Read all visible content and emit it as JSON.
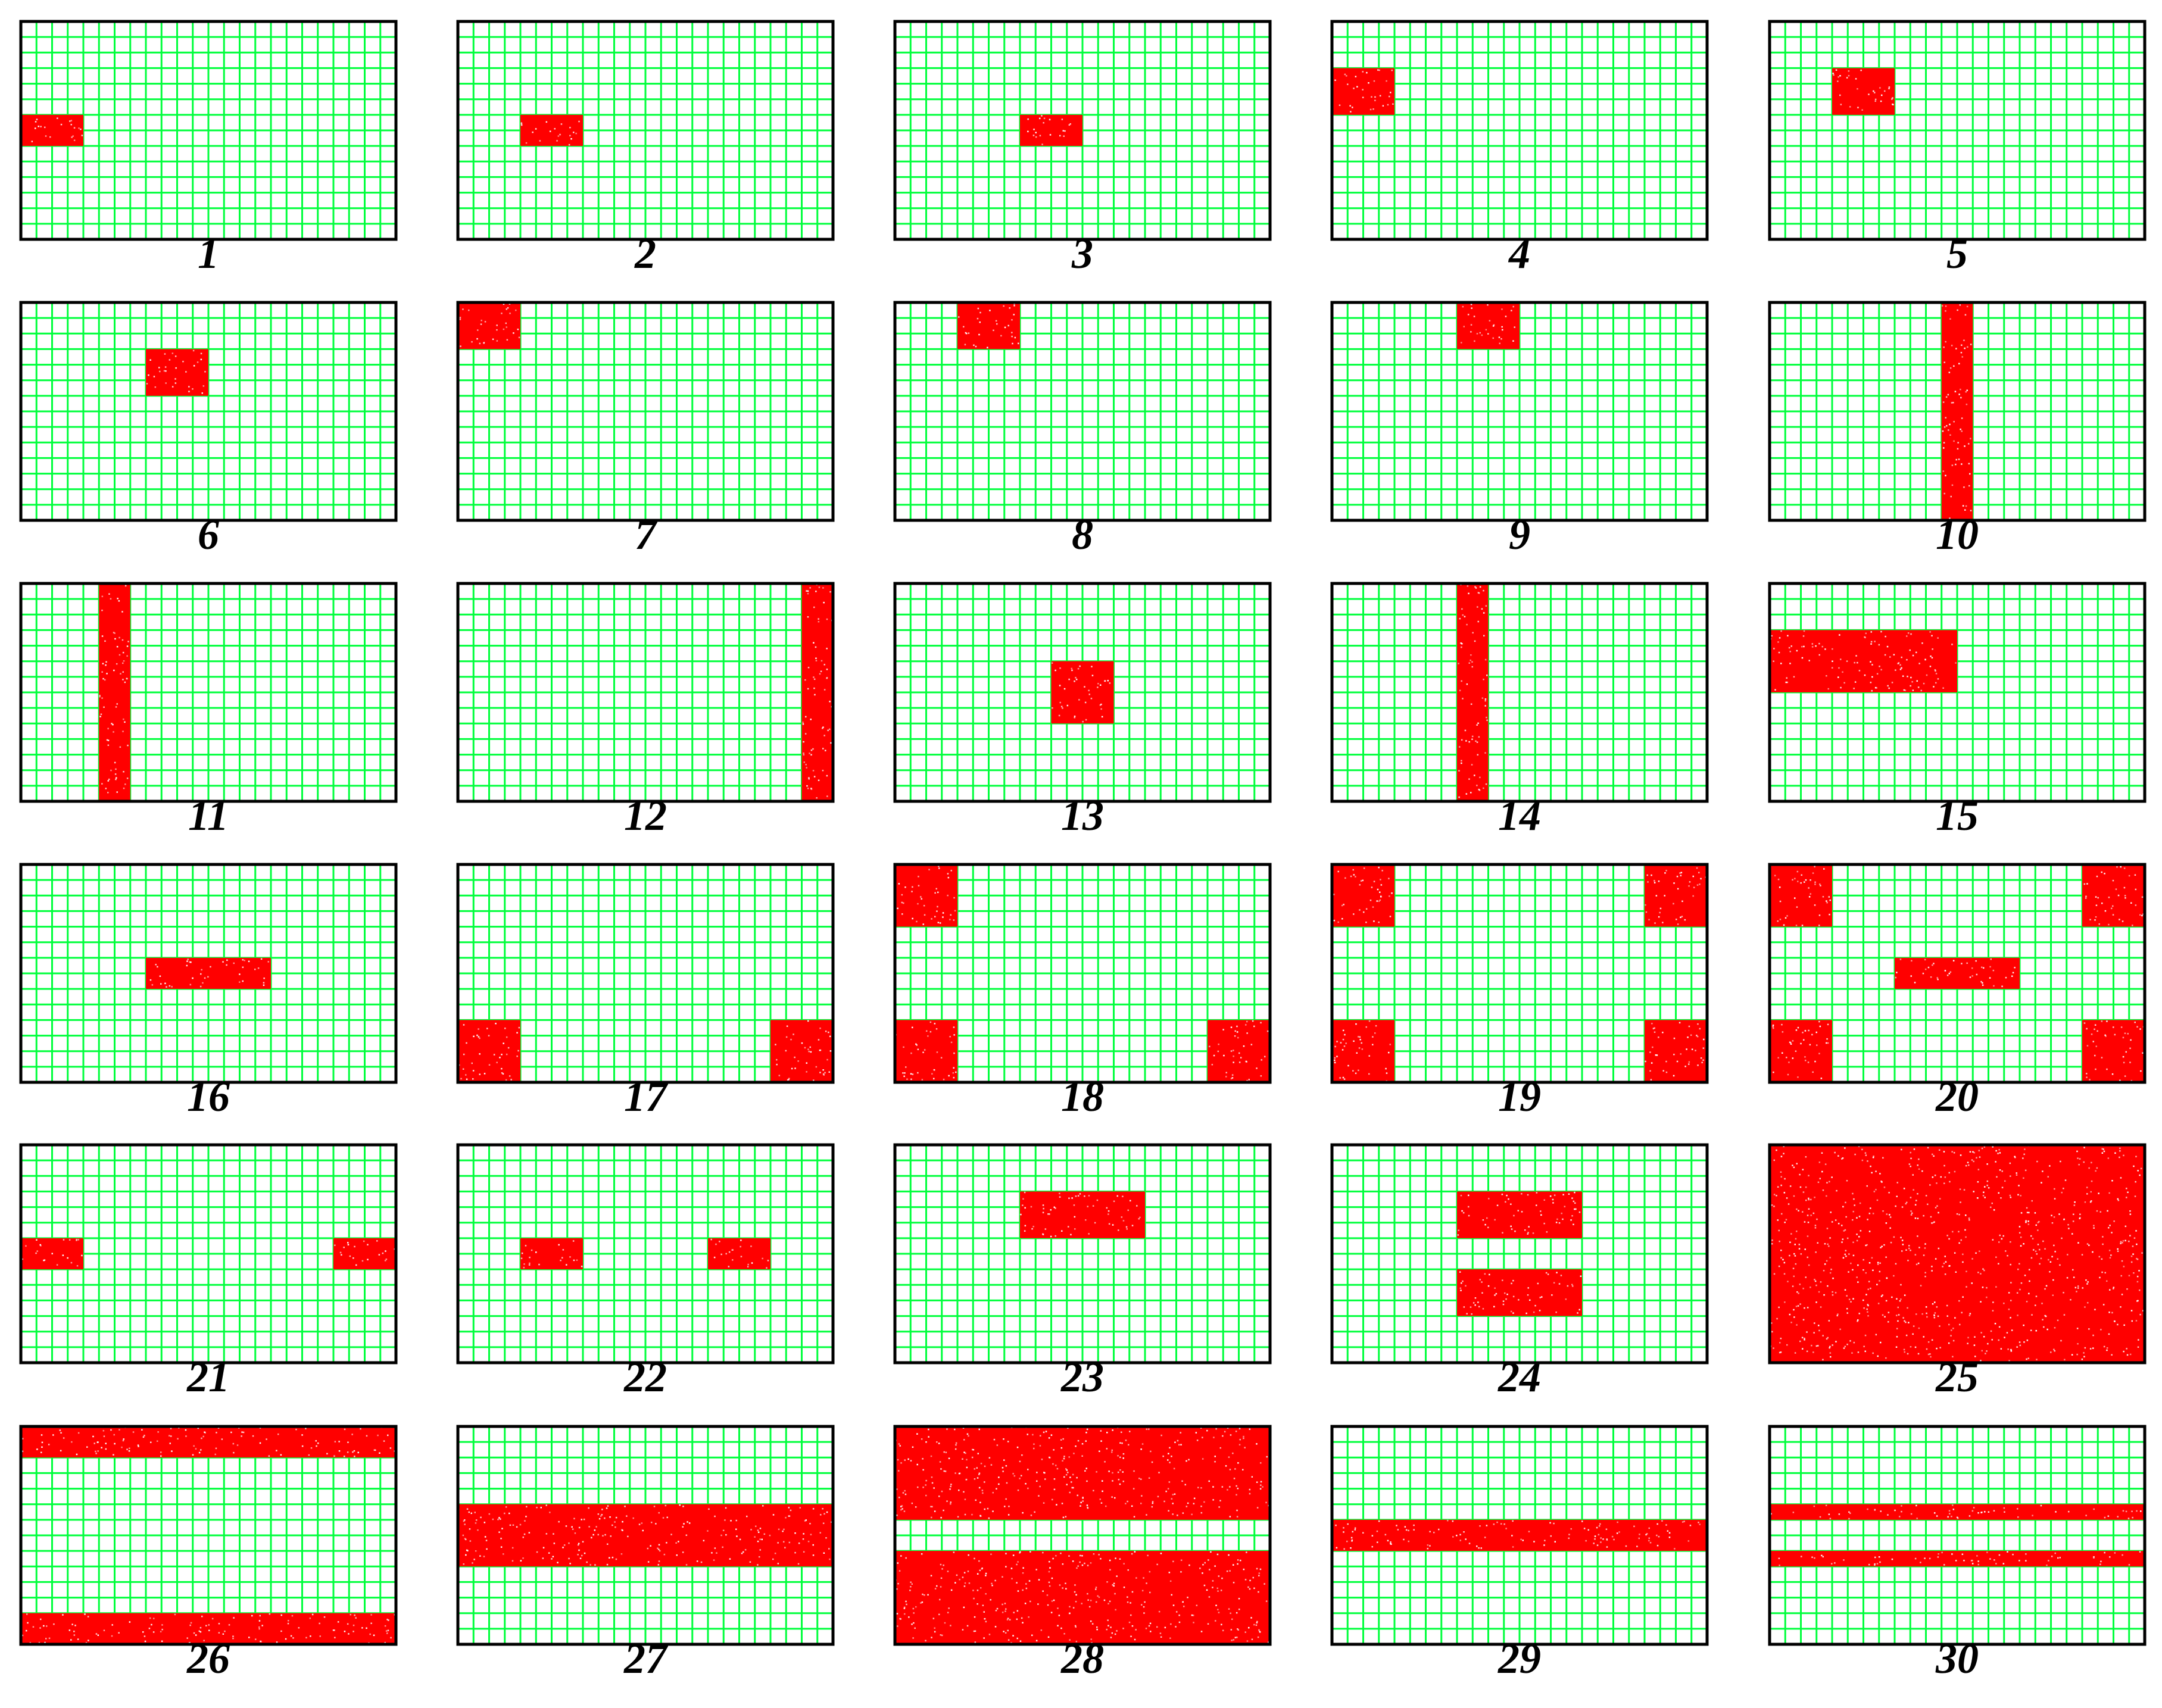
{
  "grid": {
    "columns": 24,
    "rows": 14,
    "line_color": "#00ff3c",
    "cell_background": "#ffffff",
    "border_color": "#000000",
    "fill_color": "#ff0000",
    "fill_speckle_color": "#ffffff"
  },
  "panels": [
    {
      "label": "1",
      "blocks": [
        [
          0,
          6,
          4,
          2
        ]
      ]
    },
    {
      "label": "2",
      "blocks": [
        [
          4,
          6,
          4,
          2
        ]
      ]
    },
    {
      "label": "3",
      "blocks": [
        [
          8,
          6,
          4,
          2
        ]
      ]
    },
    {
      "label": "4",
      "blocks": [
        [
          0,
          3,
          4,
          3
        ]
      ]
    },
    {
      "label": "5",
      "blocks": [
        [
          4,
          3,
          4,
          3
        ]
      ]
    },
    {
      "label": "6",
      "blocks": [
        [
          8,
          3,
          4,
          3
        ]
      ]
    },
    {
      "label": "7",
      "blocks": [
        [
          0,
          0,
          4,
          3
        ]
      ]
    },
    {
      "label": "8",
      "blocks": [
        [
          4,
          0,
          4,
          3
        ]
      ]
    },
    {
      "label": "9",
      "blocks": [
        [
          8,
          0,
          4,
          3
        ]
      ]
    },
    {
      "label": "10",
      "blocks": [
        [
          11,
          0,
          2,
          14
        ]
      ]
    },
    {
      "label": "11",
      "blocks": [
        [
          5,
          0,
          2,
          14
        ]
      ]
    },
    {
      "label": "12",
      "blocks": [
        [
          22,
          0,
          2,
          14
        ]
      ]
    },
    {
      "label": "13",
      "blocks": [
        [
          10,
          5,
          4,
          4
        ]
      ]
    },
    {
      "label": "14",
      "blocks": [
        [
          8,
          0,
          2,
          14
        ]
      ]
    },
    {
      "label": "15",
      "blocks": [
        [
          0,
          3,
          12,
          4
        ]
      ]
    },
    {
      "label": "16",
      "blocks": [
        [
          8,
          6,
          8,
          2
        ]
      ]
    },
    {
      "label": "17",
      "blocks": [
        [
          0,
          10,
          4,
          4
        ],
        [
          20,
          10,
          4,
          4
        ]
      ]
    },
    {
      "label": "18",
      "blocks": [
        [
          0,
          0,
          4,
          4
        ],
        [
          0,
          10,
          4,
          4
        ],
        [
          20,
          10,
          4,
          4
        ]
      ]
    },
    {
      "label": "19",
      "blocks": [
        [
          0,
          0,
          4,
          4
        ],
        [
          20,
          0,
          4,
          4
        ],
        [
          0,
          10,
          4,
          4
        ],
        [
          20,
          10,
          4,
          4
        ]
      ]
    },
    {
      "label": "20",
      "blocks": [
        [
          0,
          0,
          4,
          4
        ],
        [
          20,
          0,
          4,
          4
        ],
        [
          0,
          10,
          4,
          4
        ],
        [
          20,
          10,
          4,
          4
        ],
        [
          8,
          6,
          8,
          2
        ]
      ]
    },
    {
      "label": "21",
      "blocks": [
        [
          0,
          6,
          4,
          2
        ],
        [
          20,
          6,
          4,
          2
        ]
      ]
    },
    {
      "label": "22",
      "blocks": [
        [
          4,
          6,
          4,
          2
        ],
        [
          16,
          6,
          4,
          2
        ]
      ]
    },
    {
      "label": "23",
      "blocks": [
        [
          8,
          3,
          8,
          3
        ]
      ]
    },
    {
      "label": "24",
      "blocks": [
        [
          8,
          3,
          8,
          3
        ],
        [
          8,
          8,
          8,
          3
        ]
      ]
    },
    {
      "label": "25",
      "blocks": [
        [
          0,
          0,
          24,
          14
        ]
      ]
    },
    {
      "label": "26",
      "blocks": [
        [
          0,
          0,
          24,
          2
        ],
        [
          0,
          12,
          24,
          2
        ]
      ]
    },
    {
      "label": "27",
      "blocks": [
        [
          0,
          5,
          24,
          4
        ]
      ]
    },
    {
      "label": "28",
      "blocks": [
        [
          0,
          0,
          24,
          6
        ],
        [
          0,
          8,
          24,
          6
        ]
      ]
    },
    {
      "label": "29",
      "blocks": [
        [
          0,
          6,
          24,
          2
        ]
      ]
    },
    {
      "label": "30",
      "blocks": [
        [
          0,
          5,
          24,
          1
        ],
        [
          0,
          8,
          24,
          1
        ]
      ]
    }
  ]
}
